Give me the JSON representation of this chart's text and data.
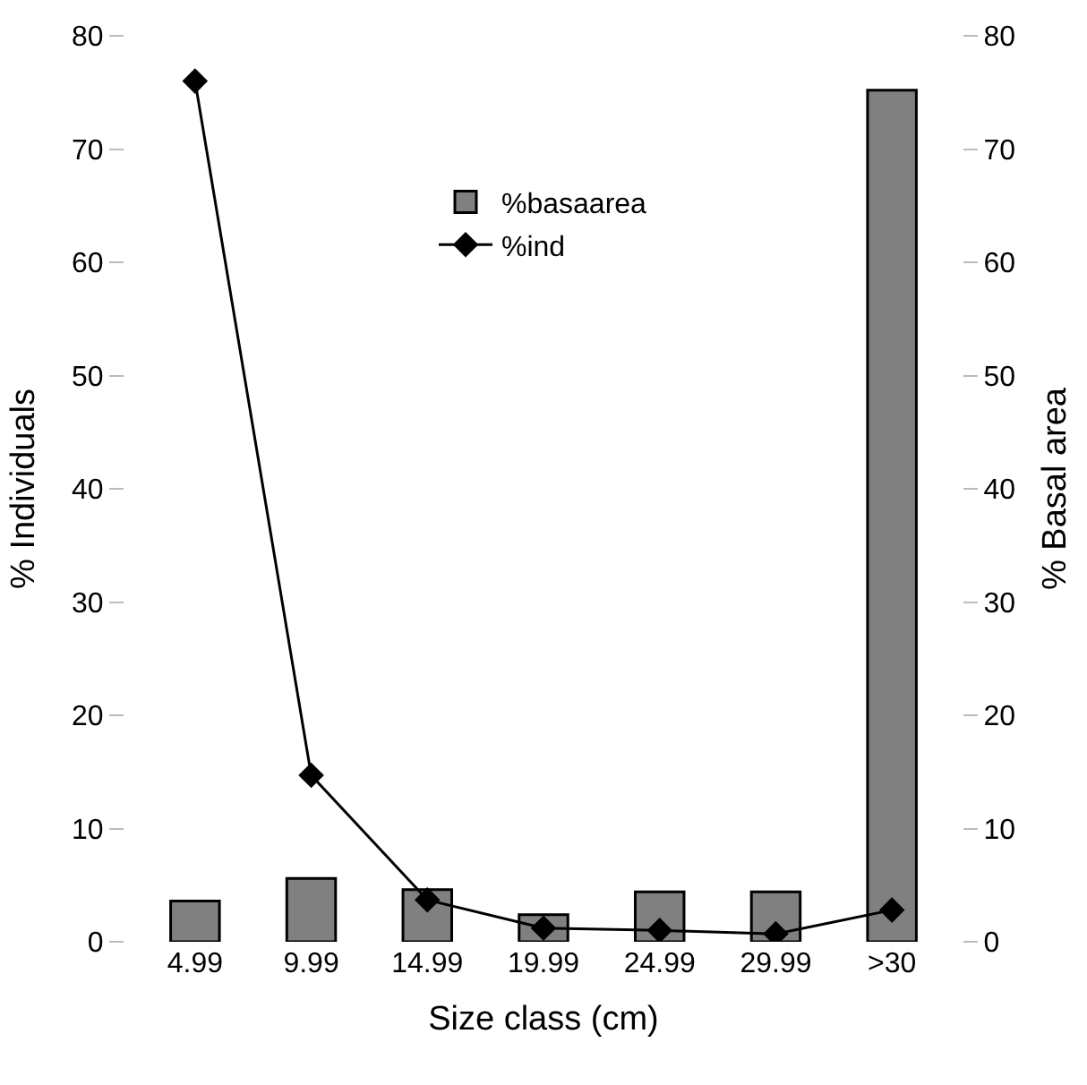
{
  "chart_data": {
    "type": "bar",
    "xlabel": "Size class (cm)",
    "ylabel": "% Individuals",
    "y2label": "% Basal area",
    "categories": [
      "4.99",
      "9.99",
      "14.99",
      "19.99",
      "24.99",
      "29.99",
      ">30"
    ],
    "series": [
      {
        "name": "%basaarea",
        "color": "#808080",
        "values": [
          3.6,
          5.6,
          4.6,
          2.4,
          4.4,
          4.4,
          75.2
        ],
        "axis": "y2"
      },
      {
        "name": "%ind",
        "type": "line",
        "color": "#000000",
        "values": [
          76,
          14.7,
          3.7,
          1.2,
          1.0,
          0.7,
          2.8
        ],
        "marker": "diamond",
        "line_style": "solid"
      }
    ],
    "ylim": [
      0,
      80
    ],
    "yticks": [
      0,
      10,
      20,
      30,
      40,
      50,
      60,
      70,
      80
    ],
    "y2lim": [
      0,
      80
    ],
    "y2ticks": [
      0,
      10,
      20,
      30,
      40,
      50,
      60,
      70,
      80
    ],
    "legend": "top"
  }
}
